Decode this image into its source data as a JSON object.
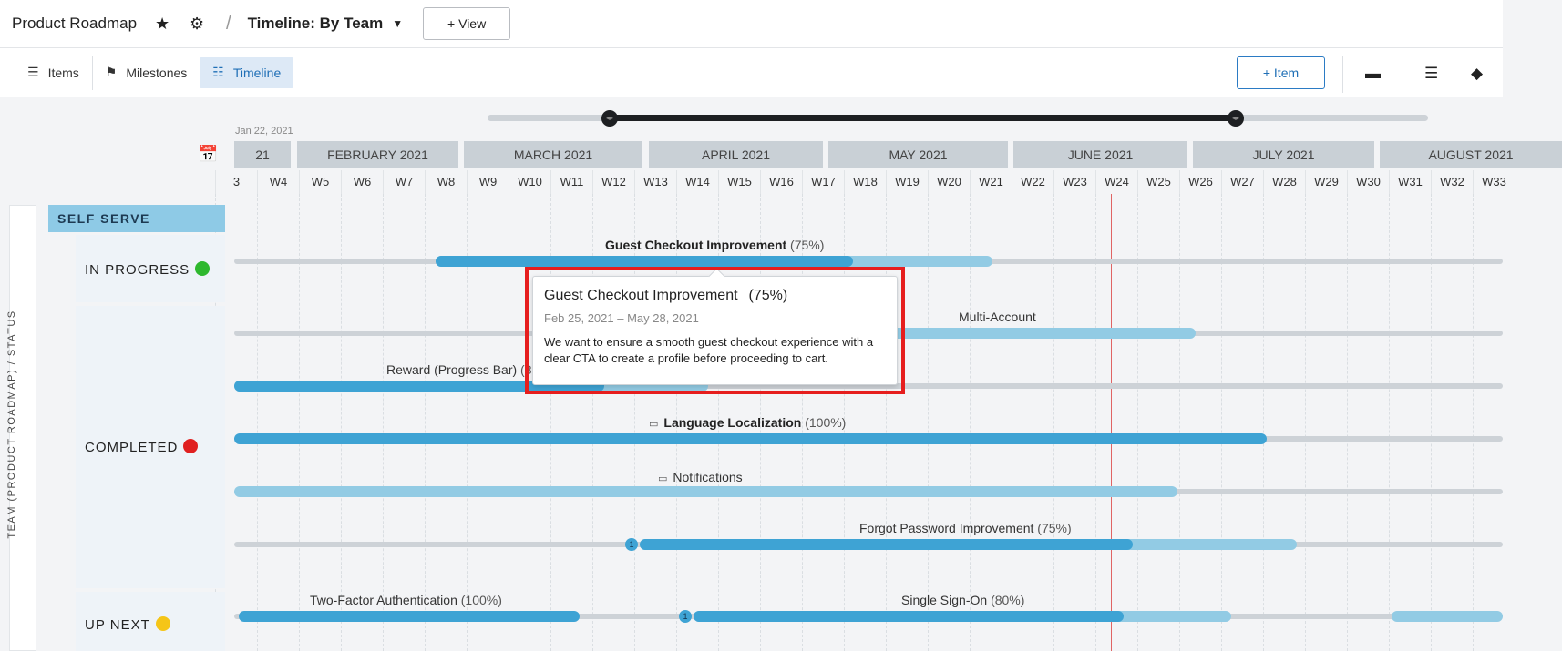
{
  "header": {
    "title": "Product Roadmap",
    "view_title": "Timeline: By Team",
    "add_view_label": "+ View"
  },
  "tabs": [
    {
      "label": "Items",
      "icon": "list-icon"
    },
    {
      "label": "Milestones",
      "icon": "flag-icon"
    },
    {
      "label": "Timeline",
      "icon": "timeline-icon",
      "active": true
    }
  ],
  "toolbar": {
    "add_item_label": "+ Item"
  },
  "timeline": {
    "start_date": "Jan 22, 2021",
    "months": [
      "FEBRUARY 2021",
      "MARCH 2021",
      "APRIL 2021",
      "MAY 2021",
      "JUNE 2021",
      "JULY 2021",
      "AUGUST 2021"
    ],
    "month_partial": "21",
    "weeks": [
      "3",
      "W4",
      "W5",
      "W6",
      "W7",
      "W8",
      "W9",
      "W10",
      "W11",
      "W12",
      "W13",
      "W14",
      "W15",
      "W16",
      "W17",
      "W18",
      "W19",
      "W20",
      "W21",
      "W22",
      "W23",
      "W24",
      "W25",
      "W26",
      "W27",
      "W28",
      "W29",
      "W30",
      "W31",
      "W32",
      "W33"
    ]
  },
  "side": {
    "group_label": "TEAM (PRODUCT ROADMAP)  /  STATUS",
    "lane": "SELF SERVE",
    "statuses": [
      {
        "label": "IN PROGRESS",
        "color": "#2eb82e"
      },
      {
        "label": "COMPLETED",
        "color": "#e02020"
      },
      {
        "label": "UP NEXT",
        "color": "#f5c518"
      }
    ]
  },
  "items": {
    "guest_checkout": {
      "name": "Guest Checkout Improvement",
      "pct": "(75%)"
    },
    "multi_account": {
      "name": "Multi-Account"
    },
    "reward": {
      "name": "Reward (Progress Bar)",
      "pct": "(8"
    },
    "language": {
      "name": "Language Localization",
      "pct": "(100%)"
    },
    "notifications": {
      "name": "Notifications"
    },
    "forgot_password": {
      "name": "Forgot Password Improvement",
      "pct": "(75%)"
    },
    "two_factor": {
      "name": "Two-Factor Authentication",
      "pct": "(100%)"
    },
    "sso": {
      "name": "Single Sign-On",
      "pct": "(80%)"
    },
    "dep_count": "1"
  },
  "tooltip": {
    "title": "Guest Checkout Improvement",
    "pct": "(75%)",
    "dates": "Feb 25, 2021 – May 28, 2021",
    "description": "We want to ensure a smooth guest checkout experience with a clear CTA to create a profile before proceeding to cart."
  }
}
